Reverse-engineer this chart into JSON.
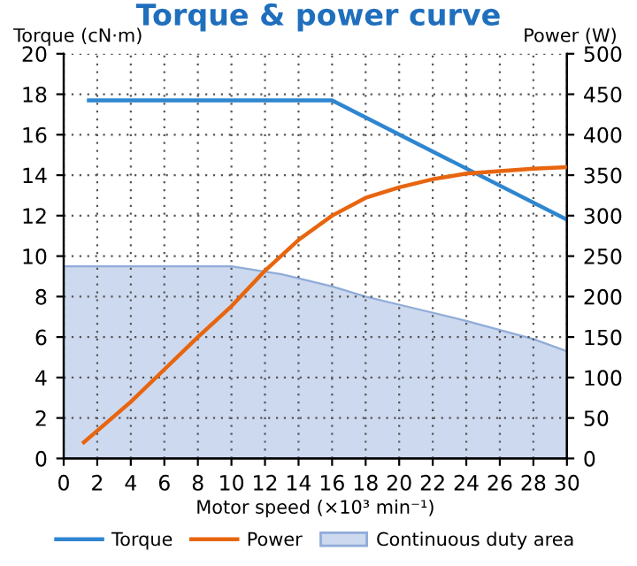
{
  "chart_data": {
    "type": "line",
    "title": "Torque & power curve",
    "xlabel": "Motor speed (×10³ min⁻¹)",
    "ylabel": "Torque (cN·m)",
    "y2label": "Power (W)",
    "xlim": [
      0,
      30
    ],
    "xticks": [
      0,
      2,
      4,
      6,
      8,
      10,
      12,
      14,
      16,
      18,
      20,
      22,
      24,
      26,
      28,
      30
    ],
    "ylim": [
      0,
      20
    ],
    "yticks": [
      0,
      2,
      4,
      6,
      8,
      10,
      12,
      14,
      16,
      18,
      20
    ],
    "y2lim": [
      0,
      500
    ],
    "y2ticks": [
      0,
      50,
      100,
      150,
      200,
      250,
      300,
      350,
      400,
      450,
      500
    ],
    "grid": true,
    "legend": "bottom",
    "line_style": "solid",
    "marker": "none",
    "series": [
      {
        "name": "Torque",
        "color": "#2f86d0",
        "x": [
          1.5,
          16,
          30
        ],
        "values": [
          17.7,
          17.7,
          11.8
        ]
      },
      {
        "name": "Power",
        "axis": "y2",
        "color": "#e8650f",
        "x": [
          1.2,
          4,
          6,
          8,
          10,
          12,
          14,
          16,
          18,
          20,
          22,
          24,
          26,
          28,
          30
        ],
        "values": [
          20,
          70,
          110,
          150,
          188,
          232,
          270,
          300,
          322,
          335,
          345,
          352,
          355,
          358,
          360
        ]
      },
      {
        "name": "Continuous duty area",
        "type": "area",
        "color": "#cdd9ee",
        "x": [
          0,
          10,
          13,
          16,
          18,
          20,
          24,
          28,
          30
        ],
        "values": [
          9.5,
          9.5,
          9.1,
          8.5,
          8.0,
          7.6,
          6.8,
          5.9,
          5.3
        ]
      }
    ]
  }
}
